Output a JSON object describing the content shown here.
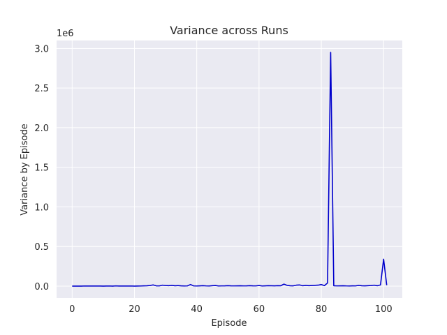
{
  "chart_data": {
    "type": "line",
    "title": "Variance across Runs",
    "xlabel": "Episode",
    "ylabel": "Variance by Episode",
    "y_offset_label": "1e6",
    "xlim": [
      -5,
      106
    ],
    "ylim": [
      -0.15,
      3.1
    ],
    "x_ticks": [
      0,
      20,
      40,
      60,
      80,
      100
    ],
    "y_ticks": [
      0.0,
      0.5,
      1.0,
      1.5,
      2.0,
      2.5,
      3.0
    ],
    "x_tick_labels": [
      "0",
      "20",
      "40",
      "60",
      "80",
      "100"
    ],
    "y_tick_labels": [
      "0.0",
      "0.5",
      "1.0",
      "1.5",
      "2.0",
      "2.5",
      "3.0"
    ],
    "grid": true,
    "colors": {
      "background": "#eaeaf2",
      "grid": "#ffffff",
      "line": "#0000cc"
    },
    "series": [
      {
        "name": "",
        "x": [
          0,
          1,
          2,
          3,
          4,
          5,
          6,
          7,
          8,
          9,
          10,
          11,
          12,
          13,
          14,
          15,
          16,
          17,
          18,
          19,
          20,
          21,
          22,
          23,
          24,
          25,
          26,
          27,
          28,
          29,
          30,
          31,
          32,
          33,
          34,
          35,
          36,
          37,
          38,
          39,
          40,
          41,
          42,
          43,
          44,
          45,
          46,
          47,
          48,
          49,
          50,
          51,
          52,
          53,
          54,
          55,
          56,
          57,
          58,
          59,
          60,
          61,
          62,
          63,
          64,
          65,
          66,
          67,
          68,
          69,
          70,
          71,
          72,
          73,
          74,
          75,
          76,
          77,
          78,
          79,
          80,
          81,
          82,
          83,
          84,
          85,
          86,
          87,
          88,
          89,
          90,
          91,
          92,
          93,
          94,
          95,
          96,
          97,
          98,
          99,
          100,
          101
        ],
        "y": [
          0.0,
          0.0,
          0.0,
          0.0,
          0.002,
          0.001,
          0.002,
          0.001,
          0.002,
          0.001,
          0.0,
          0.001,
          0.002,
          0.0,
          0.003,
          0.001,
          0.002,
          0.001,
          0.001,
          0.002,
          0.0,
          0.001,
          0.002,
          0.004,
          0.005,
          0.008,
          0.015,
          0.004,
          0.003,
          0.012,
          0.008,
          0.006,
          0.01,
          0.005,
          0.007,
          0.004,
          0.002,
          0.003,
          0.02,
          0.003,
          0.002,
          0.004,
          0.006,
          0.003,
          0.002,
          0.006,
          0.008,
          0.002,
          0.003,
          0.004,
          0.006,
          0.004,
          0.003,
          0.004,
          0.005,
          0.003,
          0.004,
          0.006,
          0.004,
          0.003,
          0.008,
          0.002,
          0.004,
          0.006,
          0.005,
          0.004,
          0.006,
          0.005,
          0.025,
          0.01,
          0.005,
          0.004,
          0.012,
          0.015,
          0.005,
          0.01,
          0.006,
          0.008,
          0.01,
          0.012,
          0.02,
          0.006,
          0.04,
          2.95,
          0.005,
          0.003,
          0.004,
          0.005,
          0.003,
          0.002,
          0.004,
          0.003,
          0.01,
          0.005,
          0.004,
          0.006,
          0.008,
          0.012,
          0.005,
          0.015,
          0.34,
          0.012
        ]
      }
    ]
  }
}
